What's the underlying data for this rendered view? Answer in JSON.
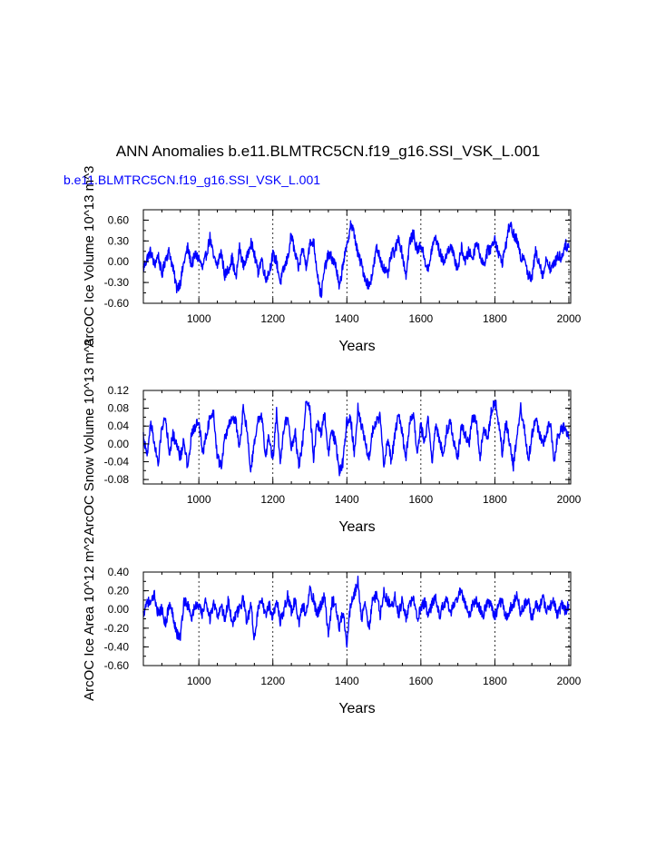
{
  "figure": {
    "title": "ANN Anomalies b.e11.BLMTRC5CN.f19_g16.SSI_VSK_L.001",
    "subtitle": "b.e11.BLMTRC5CN.f19_g16.SSI_VSK_L.001",
    "line_color": "#0000ff"
  },
  "chart_data": [
    {
      "type": "line",
      "ylabel": "ArcOC Ice Volume 10^13 m^3",
      "xlabel": "Years",
      "xlim": [
        850,
        2005
      ],
      "ylim": [
        -0.6,
        0.75
      ],
      "xticks": [
        1000,
        1200,
        1400,
        1600,
        1800,
        2000
      ],
      "yticks": [
        "0.60",
        "0.30",
        "0.00",
        "-0.30",
        "-0.60"
      ],
      "yticks_values": [
        0.6,
        0.3,
        0.0,
        -0.3,
        -0.6
      ],
      "grid": "vertical-dashed",
      "series": [
        {
          "x_start": 850,
          "x_step": 10,
          "values": [
            -0.1,
            0.05,
            0.15,
            -0.05,
            0.1,
            -0.2,
            0.05,
            0.15,
            -0.1,
            -0.38,
            -0.3,
            0.0,
            0.2,
            -0.05,
            0.1,
            0.05,
            -0.1,
            0.1,
            0.35,
            0.05,
            -0.05,
            0.15,
            -0.2,
            -0.1,
            0.05,
            -0.25,
            0.2,
            -0.05,
            0.05,
            0.3,
            0.1,
            -0.15,
            0.05,
            -0.25,
            -0.15,
            0.1,
            0.0,
            -0.3,
            -0.1,
            0.05,
            0.4,
            0.1,
            -0.1,
            0.2,
            -0.05,
            0.25,
            0.3,
            -0.15,
            -0.5,
            -0.1,
            0.1,
            0.05,
            -0.05,
            -0.4,
            0.0,
            0.2,
            0.55,
            0.4,
            0.1,
            -0.05,
            -0.25,
            -0.35,
            -0.15,
            0.2,
            0.05,
            -0.1,
            -0.2,
            0.1,
            0.15,
            0.35,
            0.1,
            -0.2,
            0.3,
            0.4,
            0.15,
            0.25,
            0.05,
            -0.15,
            0.2,
            0.35,
            0.15,
            0.0,
            0.1,
            0.25,
            0.05,
            -0.1,
            0.2,
            0.0,
            0.15,
            0.05,
            0.3,
            0.1,
            -0.05,
            0.15,
            0.2,
            0.35,
            0.1,
            0.0,
            0.25,
            0.55,
            0.4,
            0.3,
            0.05,
            0.1,
            -0.2,
            -0.25,
            0.15,
            0.0,
            -0.2,
            0.05,
            -0.1,
            -0.05,
            0.1,
            0.05,
            0.25,
            0.2
          ]
        }
      ]
    },
    {
      "type": "line",
      "ylabel": "ArcOC Snow Volume 10^13 m^3",
      "xlabel": "Years",
      "xlim": [
        850,
        2005
      ],
      "ylim": [
        -0.09,
        0.12
      ],
      "xticks": [
        1000,
        1200,
        1400,
        1600,
        1800,
        2000
      ],
      "yticks": [
        "0.12",
        "0.08",
        "0.04",
        "0.00",
        "-0.04",
        "-0.08"
      ],
      "yticks_values": [
        0.12,
        0.08,
        0.04,
        0.0,
        -0.04,
        -0.08
      ],
      "grid": "vertical-dashed",
      "series": [
        {
          "x_start": 850,
          "x_step": 10,
          "values": [
            0.02,
            -0.03,
            0.05,
            0.0,
            -0.05,
            0.04,
            0.06,
            -0.02,
            0.02,
            0.0,
            -0.03,
            0.01,
            -0.06,
            0.02,
            0.04,
            0.05,
            -0.02,
            0.02,
            0.06,
            0.07,
            -0.03,
            -0.05,
            0.01,
            0.04,
            0.06,
            0.05,
            -0.01,
            0.08,
            0.03,
            -0.06,
            0.0,
            0.05,
            0.06,
            -0.03,
            0.02,
            -0.04,
            0.07,
            -0.05,
            0.04,
            0.06,
            -0.01,
            0.03,
            -0.05,
            0.0,
            0.1,
            0.08,
            -0.03,
            0.05,
            0.02,
            0.07,
            -0.02,
            0.03,
            0.0,
            -0.06,
            -0.04,
            0.05,
            0.06,
            -0.02,
            0.08,
            0.04,
            0.0,
            -0.03,
            0.03,
            0.05,
            0.06,
            -0.05,
            0.01,
            -0.04,
            0.02,
            0.07,
            0.02,
            -0.03,
            0.05,
            0.06,
            -0.02,
            0.04,
            0.0,
            0.06,
            -0.04,
            0.04,
            0.01,
            -0.02,
            0.03,
            0.05,
            0.0,
            -0.03,
            0.04,
            0.02,
            0.0,
            0.06,
            0.05,
            -0.03,
            0.04,
            0.01,
            0.07,
            0.1,
            0.05,
            -0.02,
            0.05,
            0.0,
            -0.05,
            0.02,
            0.08,
            0.03,
            -0.04,
            0.02,
            0.06,
            0.02,
            0.0,
            0.03,
            0.05,
            -0.04,
            0.02,
            0.03,
            0.04,
            0.01
          ]
        }
      ]
    },
    {
      "type": "line",
      "ylabel": "ArcOC Ice Area 10^12 m^2",
      "xlabel": "Years",
      "xlim": [
        850,
        2005
      ],
      "ylim": [
        -0.6,
        0.4
      ],
      "xticks": [
        1000,
        1200,
        1400,
        1600,
        1800,
        2000
      ],
      "yticks": [
        "0.40",
        "0.20",
        "0.00",
        "-0.20",
        "-0.40",
        "-0.60"
      ],
      "yticks_values": [
        0.4,
        0.2,
        0.0,
        -0.2,
        -0.4,
        -0.6
      ],
      "grid": "vertical-dashed",
      "series": [
        {
          "x_start": 850,
          "x_step": 10,
          "values": [
            -0.05,
            0.1,
            0.05,
            0.15,
            -0.05,
            0.0,
            -0.15,
            0.05,
            -0.05,
            -0.25,
            -0.3,
            0.1,
            0.05,
            -0.1,
            0.05,
            0.02,
            -0.05,
            0.1,
            -0.1,
            0.05,
            -0.08,
            0.05,
            -0.1,
            0.1,
            -0.15,
            -0.05,
            0.0,
            0.12,
            -0.15,
            0.05,
            -0.3,
            0.0,
            0.08,
            -0.05,
            0.05,
            -0.08,
            0.1,
            -0.12,
            0.0,
            0.15,
            -0.02,
            0.1,
            -0.15,
            0.05,
            -0.05,
            0.2,
            0.1,
            -0.05,
            0.05,
            0.15,
            -0.3,
            0.1,
            0.05,
            -0.2,
            0.0,
            -0.35,
            0.05,
            0.15,
            0.3,
            -0.1,
            0.05,
            -0.2,
            0.1,
            0.15,
            -0.05,
            0.18,
            0.1,
            0.0,
            0.15,
            -0.05,
            0.1,
            -0.1,
            0.05,
            0.12,
            -0.1,
            0.0,
            0.08,
            -0.05,
            0.05,
            0.15,
            -0.08,
            0.05,
            0.1,
            -0.05,
            0.05,
            0.15,
            0.2,
            0.05,
            -0.08,
            0.05,
            0.1,
            0.0,
            -0.05,
            0.1,
            0.05,
            -0.1,
            0.05,
            0.1,
            -0.08,
            0.0,
            0.05,
            0.18,
            -0.05,
            0.05,
            0.1,
            -0.1,
            0.05,
            0.0,
            0.15,
            -0.05,
            0.05,
            0.08,
            -0.08,
            0.05,
            -0.02,
            0.05
          ]
        }
      ]
    }
  ]
}
